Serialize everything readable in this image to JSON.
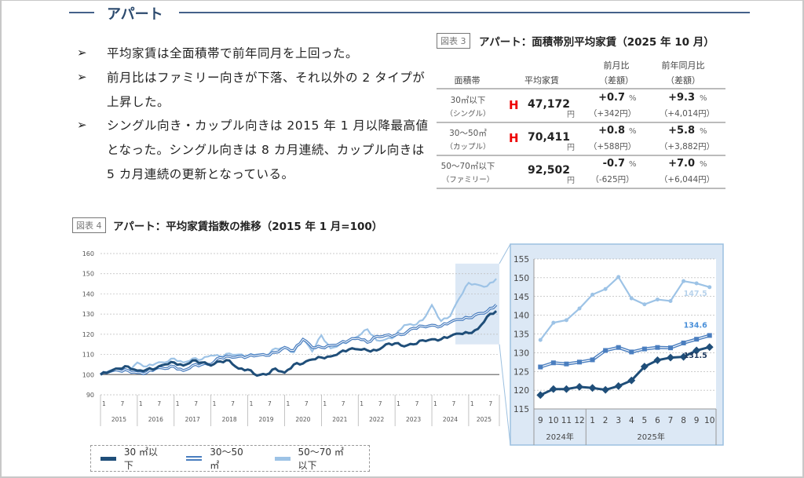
{
  "section_title": "アパート",
  "bullets": [
    "平均家賃は全面積帯で前年同月を上回った。",
    "前月比はファミリー向きが下落、それ以外の 2 タイプが上昇した。",
    "シングル向き・カップル向きは 2015 年 1 月以降最高値となった。シングル向きは 8 カ月連続、カップル向きは 5 カ月連続の更新となっている。"
  ],
  "bullet_marker": "➢",
  "table": {
    "label": "図表 3",
    "title": "アパート：面積帯別平均家賃（2025 年 10 月）",
    "headers": {
      "area": "面積帯",
      "rent": "平均家賃",
      "mom": "前月比",
      "mom_sub": "（差額）",
      "yoy": "前年同月比",
      "yoy_sub": "（差額）"
    },
    "pct_unit": "%",
    "yen_unit": "円",
    "rows": [
      {
        "area": "30㎡以下",
        "sub": "（シングル）",
        "mark": "H",
        "rent": "47,172",
        "mom": "+0.7",
        "mom_diff": "（+342円）",
        "yoy": "+9.3",
        "yoy_diff": "（+4,014円）"
      },
      {
        "area": "30〜50㎡",
        "sub": "（カップル）",
        "mark": "H",
        "rent": "70,411",
        "mom": "+0.8",
        "mom_diff": "（+588円）",
        "yoy": "+5.8",
        "yoy_diff": "（+3,882円）"
      },
      {
        "area": "50〜70㎡以下",
        "sub": "（ファミリー）",
        "mark": "",
        "rent": "92,502",
        "mom": "-0.7",
        "mom_diff": "（-625円）",
        "yoy": "+7.0",
        "yoy_diff": "（+6,044円）"
      }
    ],
    "mark_color": "#e00000"
  },
  "chart_label": "図表 4",
  "chart_title": "アパート：平均家賃指数の推移（2015 年 1 月=100）",
  "colors": {
    "s30": "#1f4e79",
    "s3050": "#4a7ebf",
    "s5070": "#9dc3e6",
    "highlight": "#dce8f5"
  },
  "chart_data": [
    {
      "type": "line",
      "ylim": [
        90,
        160
      ],
      "yticks": [
        90,
        100,
        110,
        120,
        130,
        140,
        150,
        160
      ],
      "x_month_ticks": [
        "1",
        "7"
      ],
      "years": [
        "2015",
        "2016",
        "2017",
        "2018",
        "2019",
        "2020",
        "2021",
        "2022",
        "2023",
        "2024",
        "2025"
      ],
      "x": [
        "2015-01",
        "2015-04",
        "2015-07",
        "2015-10",
        "2016-01",
        "2016-04",
        "2016-07",
        "2016-10",
        "2017-01",
        "2017-04",
        "2017-07",
        "2017-10",
        "2018-01",
        "2018-04",
        "2018-07",
        "2018-10",
        "2019-01",
        "2019-04",
        "2019-07",
        "2019-10",
        "2020-01",
        "2020-04",
        "2020-07",
        "2020-10",
        "2021-01",
        "2021-04",
        "2021-07",
        "2021-10",
        "2022-01",
        "2022-04",
        "2022-07",
        "2022-10",
        "2023-01",
        "2023-04",
        "2023-07",
        "2023-10",
        "2024-01",
        "2024-04",
        "2024-07",
        "2024-10",
        "2025-01",
        "2025-04",
        "2025-07",
        "2025-10"
      ],
      "grid": true,
      "series": [
        {
          "name": "30 ㎡以下",
          "values": [
            100,
            101.5,
            103,
            104,
            102,
            102.5,
            103,
            105,
            106,
            104.5,
            107,
            106,
            104.5,
            106.5,
            107,
            103,
            102.5,
            99.5,
            100,
            103,
            101,
            105,
            105.5,
            107.5,
            108.5,
            109,
            111,
            112.5,
            112.5,
            112,
            112,
            115,
            115.5,
            114,
            115,
            117,
            117.5,
            117.5,
            119,
            120.3,
            120.6,
            122.6,
            128.7,
            131.5
          ]
        },
        {
          "name": "30〜50 ㎡",
          "values": [
            100,
            101.5,
            102,
            102,
            101,
            101,
            103,
            103,
            104,
            102,
            104.5,
            105,
            105,
            108.5,
            109,
            109,
            109,
            109.5,
            109.5,
            111,
            113.5,
            112,
            117.5,
            113.5,
            113.5,
            114.5,
            115.5,
            117,
            118,
            116,
            119,
            119.5,
            119.5,
            120,
            123,
            124,
            124.5,
            124,
            126,
            127.3,
            128.1,
            130.2,
            131.3,
            134.6
          ]
        },
        {
          "name": "50〜70 ㎡以下",
          "values": [
            100,
            102,
            102.5,
            102,
            106,
            104,
            105.5,
            106,
            108,
            106,
            108,
            107.5,
            109.5,
            109,
            110.5,
            110,
            109.5,
            110,
            109.5,
            113,
            113.5,
            111,
            117.5,
            111.5,
            119.5,
            113,
            115,
            116.5,
            119,
            122.5,
            117,
            117.5,
            119,
            124.5,
            124.5,
            127,
            134.5,
            126.5,
            129,
            138,
            145.5,
            144.5,
            143.8,
            147.5
          ]
        }
      ],
      "legend": "bottom"
    },
    {
      "type": "line",
      "ylim": [
        115,
        155
      ],
      "yticks": [
        115,
        120,
        125,
        130,
        135,
        140,
        145,
        150,
        155
      ],
      "categories": [
        "9",
        "10",
        "11",
        "12",
        "1",
        "2",
        "3",
        "4",
        "5",
        "6",
        "7",
        "8",
        "9",
        "10"
      ],
      "year_groups": [
        {
          "label": "2024年",
          "count": 4
        },
        {
          "label": "2025年",
          "count": 10
        }
      ],
      "grid": true,
      "series": [
        {
          "name": "50〜70 ㎡以下",
          "values": [
            133.4,
            138.0,
            138.7,
            141.8,
            145.5,
            147.0,
            150.2,
            144.5,
            142.9,
            144.2,
            143.8,
            149.1,
            148.5,
            147.5
          ],
          "end_label": "147.5"
        },
        {
          "name": "30〜50 ㎡",
          "values": [
            126.2,
            127.3,
            127.0,
            127.5,
            128.1,
            130.6,
            131.4,
            130.2,
            131.0,
            131.4,
            131.3,
            132.6,
            133.6,
            134.6
          ],
          "end_label": "134.6"
        },
        {
          "name": "30 ㎡以下",
          "values": [
            118.7,
            120.3,
            120.3,
            120.9,
            120.6,
            120.1,
            121.1,
            122.6,
            126.3,
            128.0,
            128.7,
            128.9,
            130.6,
            131.5
          ],
          "end_label": "131.5"
        }
      ]
    }
  ]
}
